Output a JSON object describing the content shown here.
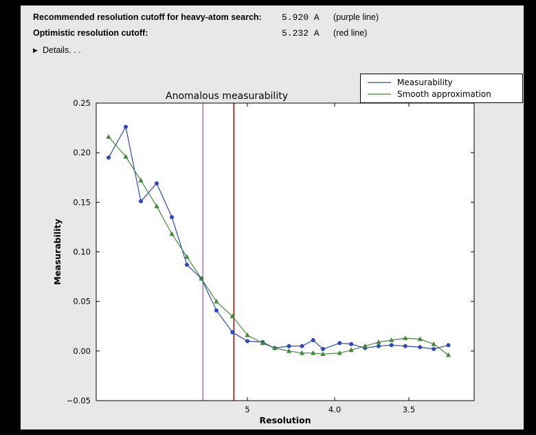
{
  "colors": {
    "page_background": "#000000",
    "panel_background": "#e8e8e8",
    "plot_background": "#ffffff",
    "axes_color": "#000000",
    "measurability": "#2b46c8",
    "smooth": "#3f8834",
    "purple_cutoff": "#bb49bb",
    "red_cutoff": "#96402f"
  },
  "info": {
    "rows": [
      {
        "label": "Recommended resolution cutoff for heavy-atom search:",
        "value": "5.920 A",
        "note": "(purple line)"
      },
      {
        "label": "Optimistic resolution cutoff:",
        "value": "5.232 A",
        "note": "(red line)"
      }
    ],
    "details_icon": "▶",
    "details_label": "Details. . ."
  },
  "chart_data": {
    "type": "line",
    "title": "Anomalous measurability",
    "xlabel": "Resolution",
    "ylabel": "Measurability",
    "x_scale": "inverse_d_squared",
    "xlim_A": [
      31.3,
      3.19
    ],
    "ylim": [
      -0.05,
      0.25
    ],
    "grid": false,
    "legend_position": "upper right outside",
    "x_ticks": [
      {
        "d": 5.0,
        "label": "5"
      },
      {
        "d": 4.0,
        "label": "4.0"
      },
      {
        "d": 3.5,
        "label": "3.5"
      }
    ],
    "y_ticks": [
      {
        "value": 0.25,
        "label": "0.25"
      },
      {
        "value": 0.2,
        "label": "0.20"
      },
      {
        "value": 0.15,
        "label": "0.15"
      },
      {
        "value": 0.1,
        "label": "0.10"
      },
      {
        "value": 0.05,
        "label": "0.05"
      },
      {
        "value": 0.0,
        "label": "0.00"
      },
      {
        "value": -0.05,
        "label": "−0.05"
      }
    ],
    "resolution_A": [
      15.41,
      10.76,
      8.93,
      7.76,
      6.98,
      6.4,
      5.96,
      5.59,
      5.26,
      5.0,
      4.77,
      4.61,
      4.44,
      4.3,
      4.19,
      4.1,
      3.96,
      3.87,
      3.77,
      3.68,
      3.6,
      3.52,
      3.44,
      3.37,
      3.3
    ],
    "series": [
      {
        "name": "Measurability",
        "color_key": "measurability",
        "marker": "circle",
        "line_name": "measurability-series-line",
        "marker_name": "measurability-series-markers",
        "values": [
          0.195,
          0.226,
          0.151,
          0.169,
          0.135,
          0.087,
          0.073,
          0.041,
          0.019,
          0.01,
          0.009,
          0.003,
          0.005,
          0.005,
          0.011,
          0.002,
          0.008,
          0.007,
          0.003,
          0.005,
          0.006,
          0.005,
          0.004,
          0.002,
          0.006
        ]
      },
      {
        "name": "Smooth approximation",
        "color_key": "smooth",
        "marker": "triangle",
        "line_name": "smooth-series-line",
        "marker_name": "smooth-series-markers",
        "values": [
          0.216,
          0.196,
          0.172,
          0.146,
          0.118,
          0.095,
          0.073,
          0.05,
          0.035,
          0.016,
          0.008,
          0.003,
          0.0,
          -0.002,
          -0.002,
          -0.003,
          -0.002,
          0.001,
          0.005,
          0.009,
          0.011,
          0.013,
          0.012,
          0.007,
          -0.004
        ]
      }
    ],
    "vlines": [
      {
        "name": "purple-cutoff-line",
        "resolution_A": 5.92,
        "label": "purple line",
        "color_key": "purple_cutoff",
        "width": 1.3
      },
      {
        "name": "red-cutoff-line",
        "resolution_A": 5.232,
        "label": "red line",
        "color_key": "red_cutoff",
        "width": 2
      }
    ]
  }
}
